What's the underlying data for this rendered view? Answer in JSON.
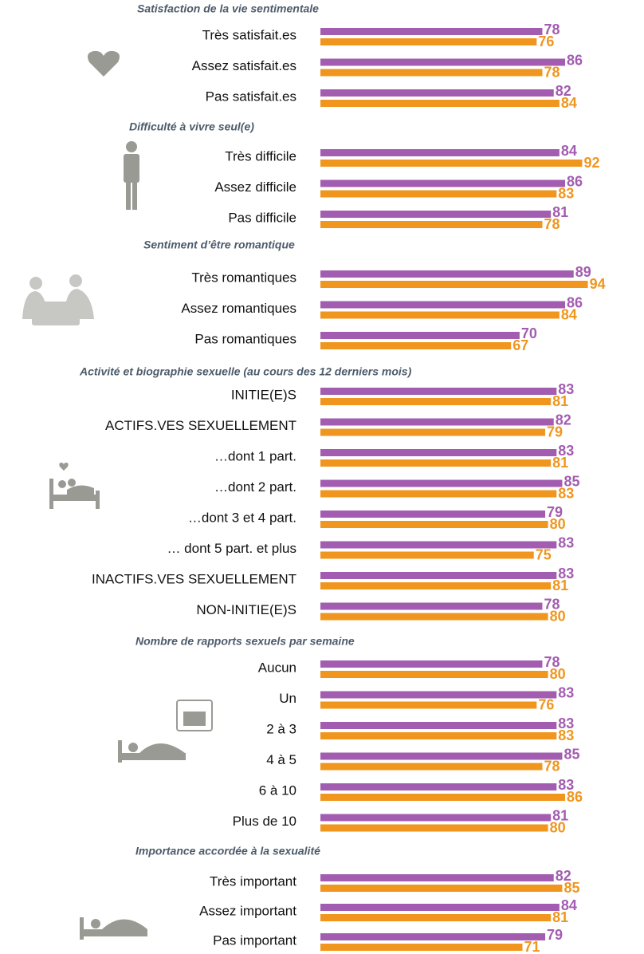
{
  "chart_data": [
    {
      "type": "bar",
      "title": "Satisfaction de la vie sentimentale",
      "categories": [
        "Très satisfait.es",
        "Assez satisfait.es",
        "Pas satisfait.es"
      ],
      "series": [
        {
          "color": "#a35db0",
          "values": [
            78,
            86,
            82
          ]
        },
        {
          "color": "#f0961e",
          "values": [
            76,
            78,
            84
          ]
        }
      ]
    },
    {
      "type": "bar",
      "title": "Difficulté à vivre seul(e)",
      "categories": [
        "Très difficile",
        "Assez difficile",
        "Pas difficile"
      ],
      "series": [
        {
          "color": "#a35db0",
          "values": [
            84,
            86,
            81
          ]
        },
        {
          "color": "#f0961e",
          "values": [
            92,
            83,
            78
          ]
        }
      ]
    },
    {
      "type": "bar",
      "title": "Sentiment d’être romantique",
      "categories": [
        "Très romantiques",
        "Assez romantiques",
        "Pas romantiques"
      ],
      "series": [
        {
          "color": "#a35db0",
          "values": [
            89,
            86,
            70
          ]
        },
        {
          "color": "#f0961e",
          "values": [
            94,
            84,
            67
          ]
        }
      ]
    },
    {
      "type": "bar",
      "title": "Activité et biographie sexuelle (au cours des 12 derniers mois)",
      "categories": [
        "INITIE(E)S",
        "ACTIFS.VES SEXUELLEMENT",
        "…dont 1 part.",
        "…dont 2 part.",
        "…dont 3 et 4 part.",
        "… dont 5 part. et plus",
        "INACTIFS.VES SEXUELLEMENT",
        "NON-INITIE(E)S"
      ],
      "series": [
        {
          "color": "#a35db0",
          "values": [
            83,
            82,
            83,
            85,
            79,
            83,
            83,
            78
          ]
        },
        {
          "color": "#f0961e",
          "values": [
            81,
            79,
            81,
            83,
            80,
            75,
            81,
            80
          ]
        }
      ]
    },
    {
      "type": "bar",
      "title": "Nombre de rapports sexuels par semaine",
      "categories": [
        "Aucun",
        "Un",
        "2 à 3",
        "4 à 5",
        "6 à 10",
        "Plus de 10"
      ],
      "series": [
        {
          "color": "#a35db0",
          "values": [
            78,
            83,
            83,
            85,
            83,
            81
          ]
        },
        {
          "color": "#f0961e",
          "values": [
            80,
            76,
            83,
            78,
            86,
            80
          ]
        }
      ]
    },
    {
      "type": "bar",
      "title": "Importance accordée à la sexualité",
      "categories": [
        "Très important",
        "Assez important",
        "Pas important"
      ],
      "series": [
        {
          "color": "#a35db0",
          "values": [
            82,
            84,
            79
          ]
        },
        {
          "color": "#f0961e",
          "values": [
            85,
            81,
            71
          ]
        }
      ]
    }
  ]
}
